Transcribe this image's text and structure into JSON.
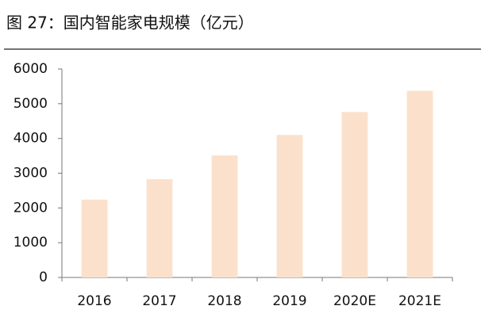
{
  "chart_data": {
    "type": "bar",
    "title": "图 27：国内智能家电规模（亿元）",
    "categories": [
      "2016",
      "2017",
      "2018",
      "2019",
      "2020E",
      "2021E"
    ],
    "values": [
      2240,
      2830,
      3510,
      4100,
      4760,
      5370
    ],
    "color": "#fbe1cc",
    "ylim": [
      0,
      6000
    ],
    "yticks": [
      0,
      1000,
      2000,
      3000,
      4000,
      5000,
      6000
    ],
    "grid": false
  }
}
